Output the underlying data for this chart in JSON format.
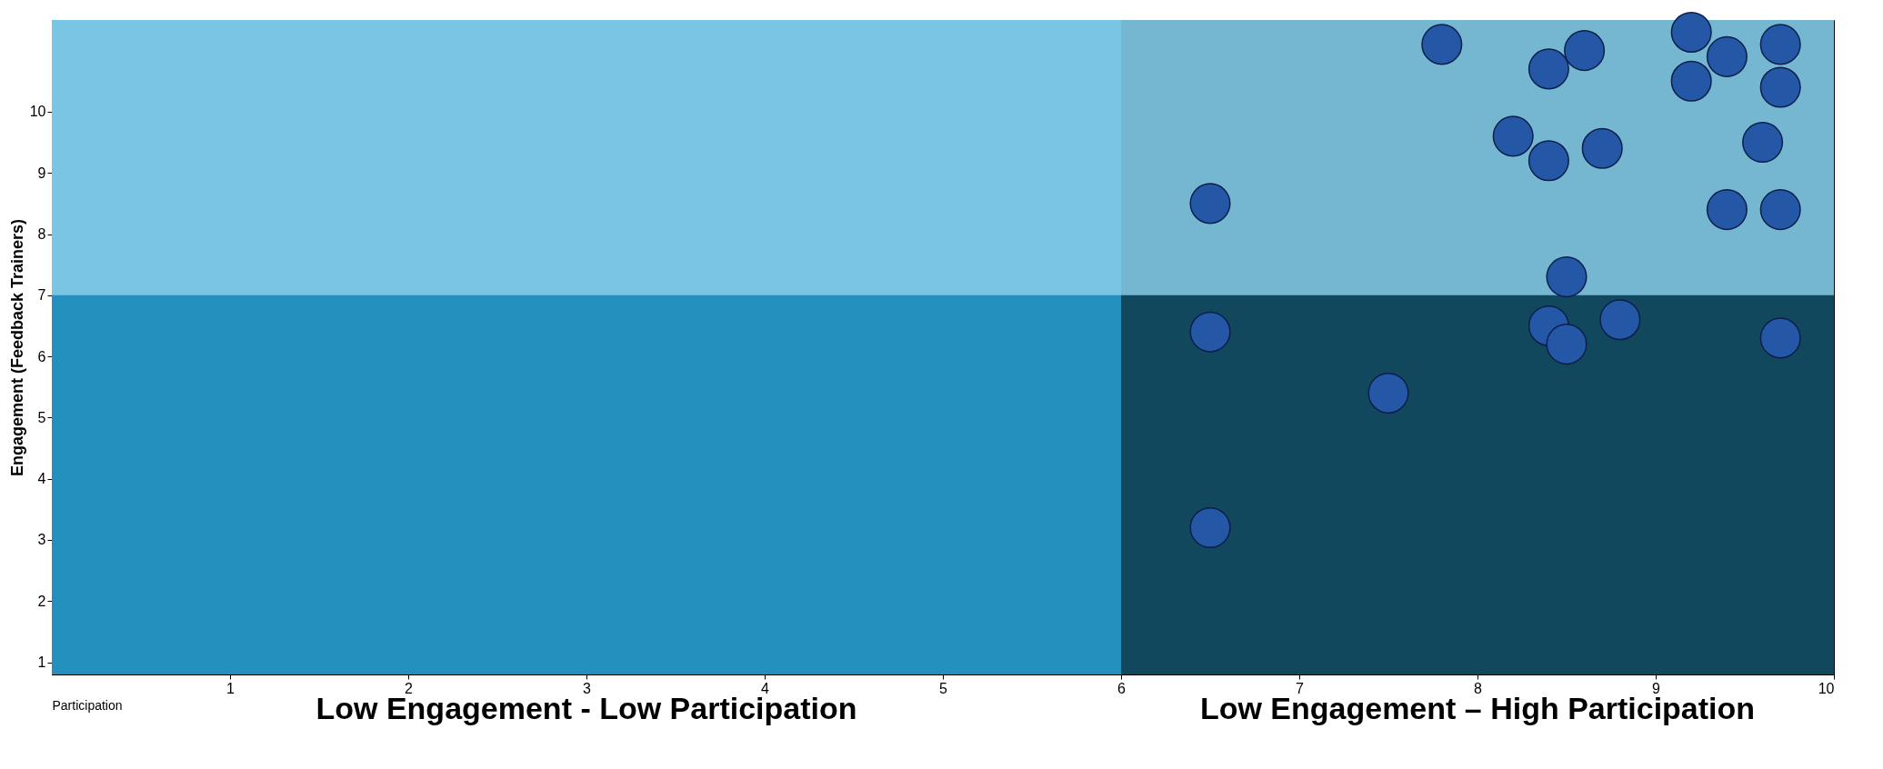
{
  "chart_data": {
    "type": "scatter",
    "xlabel": "Participation",
    "ylabel": "Engagement (Feedback Trainers)",
    "xlim": [
      0,
      10
    ],
    "ylim": [
      0.8,
      11.5
    ],
    "xticks": [
      1,
      2,
      3,
      4,
      5,
      6,
      7,
      8,
      9,
      10
    ],
    "yticks": [
      1,
      2,
      3,
      4,
      5,
      6,
      7,
      8,
      9,
      10
    ],
    "grid": false,
    "marker": "circle",
    "bands": [
      {
        "axis": "x",
        "from": 0,
        "to": 6,
        "label": "Low Engagement - Low Participation",
        "color": "#2390bd"
      },
      {
        "axis": "x",
        "from": 6,
        "to": 10,
        "label": "Low Engagement – High Participation",
        "color": "#12485d"
      },
      {
        "axis": "y",
        "from": 7,
        "to": 11.5,
        "label": null,
        "color": "#8fd3ee"
      }
    ],
    "series": [
      {
        "color": "#2457a6",
        "x": [
          6.5,
          6.5,
          6.5,
          7.5,
          7.8,
          8.2,
          8.4,
          8.4,
          8.6,
          8.7,
          8.5,
          8.4,
          8.5,
          8.8,
          9.2,
          9.2,
          9.4,
          9.7,
          9.7,
          9.6,
          9.4,
          9.7,
          9.7
        ],
        "values": [
          8.5,
          6.4,
          3.2,
          5.4,
          11.1,
          9.6,
          10.7,
          9.2,
          11.0,
          9.4,
          7.3,
          6.5,
          6.2,
          6.6,
          11.3,
          10.5,
          10.9,
          11.1,
          10.4,
          9.5,
          8.4,
          8.4,
          6.3
        ]
      }
    ]
  }
}
